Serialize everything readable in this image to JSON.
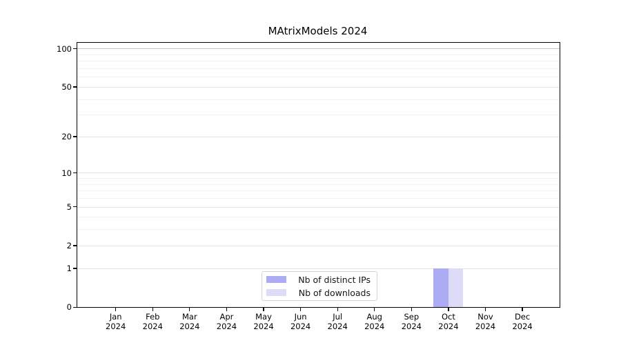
{
  "chart_data": {
    "type": "bar",
    "title": "MAtrixModels 2024",
    "categories": [
      "Jan 2024",
      "Feb 2024",
      "Mar 2024",
      "Apr 2024",
      "May 2024",
      "Jun 2024",
      "Jul 2024",
      "Aug 2024",
      "Sep 2024",
      "Oct 2024",
      "Nov 2024",
      "Dec 2024"
    ],
    "series": [
      {
        "name": "Nb of distinct IPs",
        "color": "#acacf4",
        "values": [
          0,
          0,
          0,
          0,
          0,
          0,
          0,
          0,
          0,
          1,
          0,
          0
        ]
      },
      {
        "name": "Nb of downloads",
        "color": "#dcdcf8",
        "values": [
          0,
          0,
          0,
          0,
          0,
          0,
          0,
          0,
          0,
          1,
          0,
          0
        ]
      }
    ],
    "yscale": "log1p",
    "ylim": [
      0,
      111
    ],
    "y_major_ticks": [
      0,
      1,
      2,
      5,
      10,
      20,
      50,
      100
    ],
    "y_minor_ticks": [
      3,
      4,
      6,
      7,
      8,
      9,
      30,
      40,
      60,
      70,
      80,
      90
    ],
    "grid": "both",
    "legend_position": "bottom-center",
    "colors": {
      "grid_major": "#e2e2e2",
      "grid_minor": "#f2f2f2",
      "grid_top": "#c2c2c2",
      "axis": "#000000",
      "legend_border": "#d4d4d4"
    }
  }
}
